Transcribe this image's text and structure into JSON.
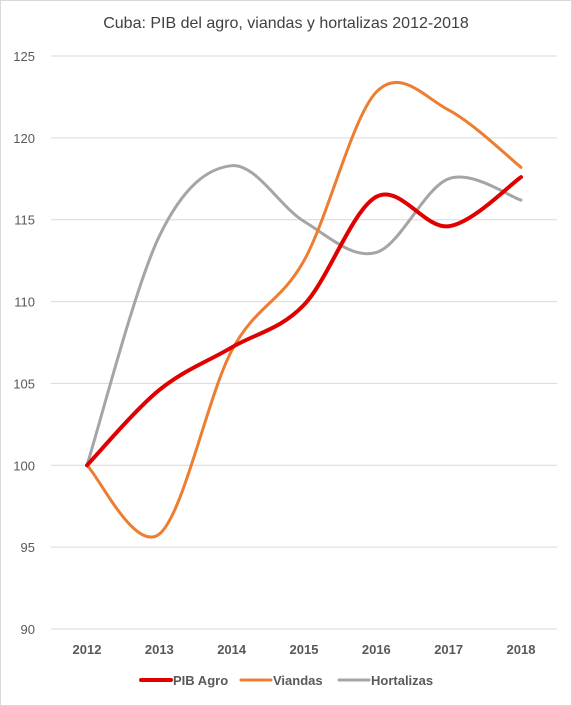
{
  "chart_data": {
    "type": "line",
    "title": "Cuba: PIB del agro, viandas y hortalizas 2012-2018",
    "xlabel": "",
    "ylabel": "",
    "categories": [
      "2012",
      "2013",
      "2014",
      "2015",
      "2016",
      "2017",
      "2018"
    ],
    "ylim": [
      90,
      125
    ],
    "yticks": [
      90,
      95,
      100,
      105,
      110,
      115,
      120,
      125
    ],
    "grid": true,
    "smooth": true,
    "legend": "bottom",
    "series": [
      {
        "name": "PIB Agro",
        "color": "#e00000",
        "values": [
          100,
          104.6,
          107.2,
          109.8,
          116.4,
          114.6,
          117.6
        ]
      },
      {
        "name": "Viandas",
        "color": "#ed7d31",
        "values": [
          100,
          95.8,
          107.0,
          112.5,
          122.8,
          121.7,
          118.2
        ]
      },
      {
        "name": "Hortalizas",
        "color": "#a5a5a5",
        "values": [
          100,
          114.0,
          118.3,
          114.9,
          113.0,
          117.5,
          116.2
        ]
      }
    ]
  }
}
